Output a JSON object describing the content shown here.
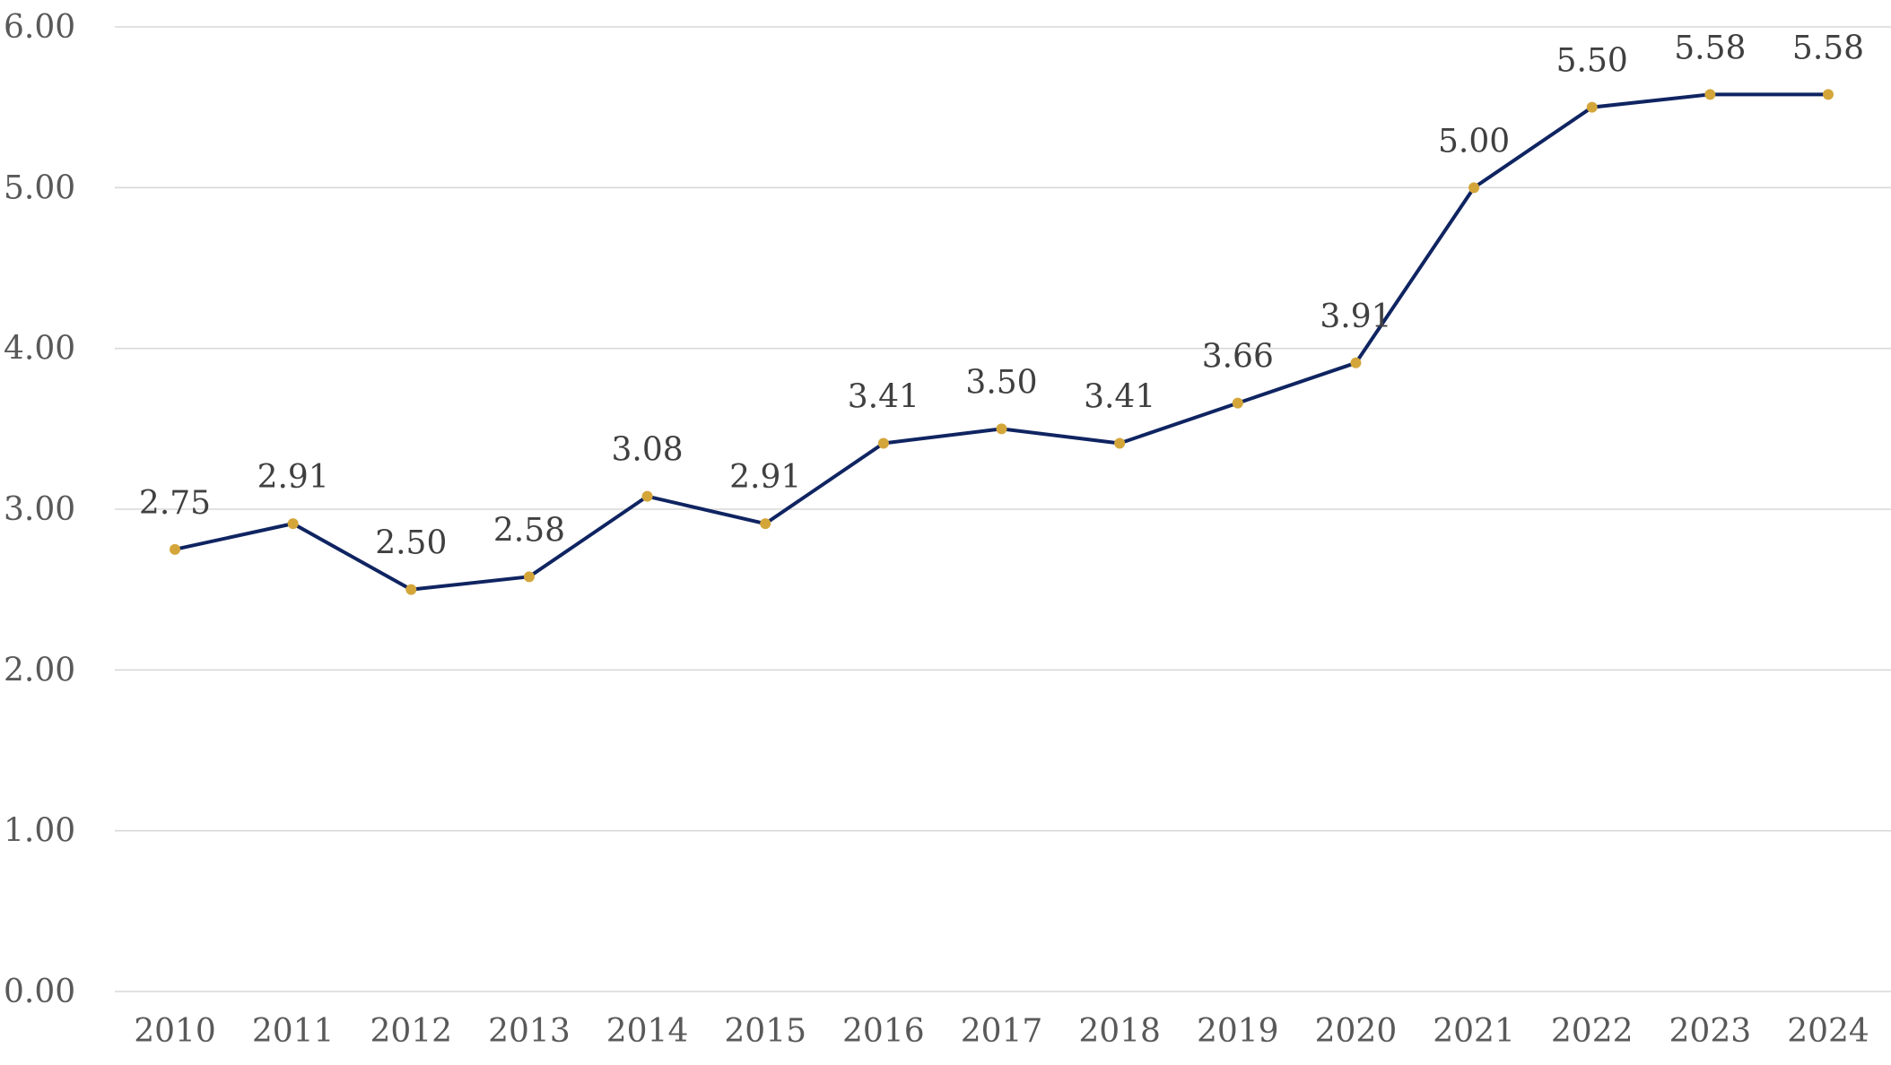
{
  "chart_data": {
    "type": "line",
    "title": "",
    "xlabel": "",
    "ylabel": "",
    "categories": [
      "2010",
      "2011",
      "2012",
      "2013",
      "2014",
      "2015",
      "2016",
      "2017",
      "2018",
      "2019",
      "2020",
      "2021",
      "2022",
      "2023",
      "2024"
    ],
    "series": [
      {
        "values": [
          2.75,
          2.91,
          2.5,
          2.58,
          3.08,
          2.91,
          3.41,
          3.5,
          3.41,
          3.66,
          3.91,
          5.0,
          5.5,
          5.58,
          5.58
        ],
        "data_labels": [
          "2.75",
          "2.91",
          "2.50",
          "2.58",
          "3.08",
          "2.91",
          "3.41",
          "3.50",
          "3.41",
          "3.66",
          "3.91",
          "5.00",
          "5.50",
          "5.58",
          "5.58"
        ],
        "line_color": "#0f2461",
        "marker_color": "#d4a63a"
      }
    ],
    "ylim": [
      0,
      6
    ],
    "y_ticks": [
      "0.00",
      "1.00",
      "2.00",
      "3.00",
      "4.00",
      "5.00",
      "6.00"
    ],
    "grid": true,
    "legend": "none"
  }
}
